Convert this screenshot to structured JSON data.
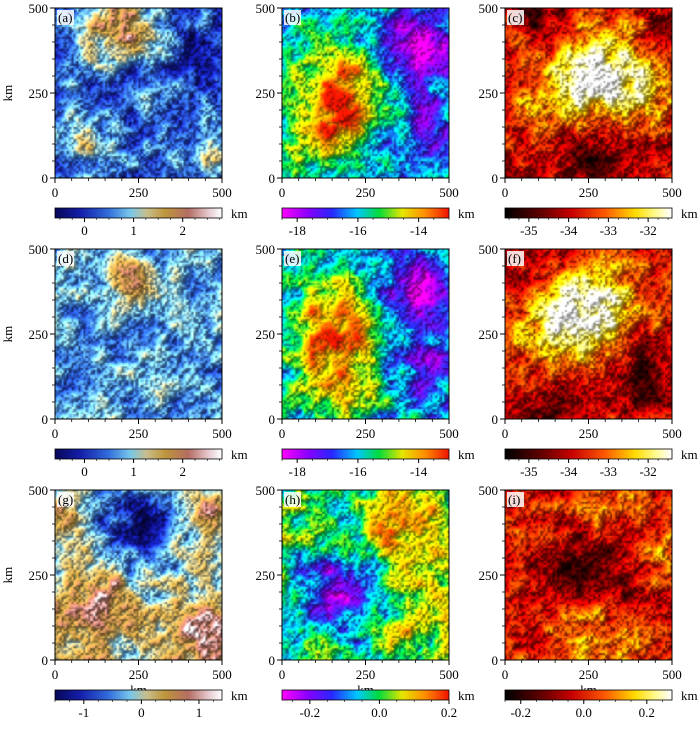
{
  "chart_data": [
    {
      "type": "heatmap",
      "label": "(a)",
      "axes": {
        "xlim": [
          0,
          500
        ],
        "ylim": [
          0,
          500
        ],
        "xticks": [
          "0",
          "250",
          "500"
        ],
        "yticks": [
          "0",
          "250",
          "500"
        ],
        "ylabel": "km",
        "xlabel": ""
      },
      "colorbar": {
        "unit": "km",
        "ticks": [
          "0",
          "1",
          "2"
        ],
        "tick_values": [
          0,
          1,
          2
        ],
        "range": [
          -0.6,
          2.8
        ],
        "colormap": "relief"
      },
      "pattern": {
        "min": -0.5,
        "max": 2.7,
        "blobs": [
          {
            "x": 180,
            "y": 440,
            "r": 120,
            "a": 1.6
          },
          {
            "x": 100,
            "y": 90,
            "r": 85,
            "a": 0.7
          },
          {
            "x": 470,
            "y": 80,
            "r": 60,
            "a": 0.8
          },
          {
            "x": 320,
            "y": 260,
            "r": 70,
            "a": 0.5
          },
          {
            "x": 250,
            "y": 320,
            "r": 60,
            "a": -0.5
          },
          {
            "x": 420,
            "y": 350,
            "r": 90,
            "a": -0.6
          }
        ],
        "base": 0.35,
        "seed": 11
      }
    },
    {
      "type": "heatmap",
      "label": "(b)",
      "axes": {
        "xlim": [
          0,
          500
        ],
        "ylim": [
          0,
          500
        ],
        "xticks": [
          "0",
          "250",
          "500"
        ],
        "yticks": [
          "0",
          "250",
          "500"
        ],
        "ylabel": "",
        "xlabel": ""
      },
      "colorbar": {
        "unit": "km",
        "ticks": [
          "-18",
          "-16",
          "-14"
        ],
        "tick_values": [
          -18,
          -16,
          -14
        ],
        "range": [
          -18.5,
          -13
        ],
        "colormap": "rainbow"
      },
      "pattern": {
        "min": -18.2,
        "max": -13.3,
        "blobs": [
          {
            "x": 180,
            "y": 250,
            "r": 130,
            "a": 2.6
          },
          {
            "x": 120,
            "y": 120,
            "r": 110,
            "a": 1.4
          },
          {
            "x": 400,
            "y": 380,
            "r": 110,
            "a": -2.2
          },
          {
            "x": 430,
            "y": 150,
            "r": 90,
            "a": -1.4
          }
        ],
        "base": -16.0,
        "seed": 21
      }
    },
    {
      "type": "heatmap",
      "label": "(c)",
      "axes": {
        "xlim": [
          0,
          500
        ],
        "ylim": [
          0,
          500
        ],
        "xticks": [
          "0",
          "250",
          "500"
        ],
        "yticks": [
          "0",
          "250",
          "500"
        ],
        "ylabel": "",
        "xlabel": ""
      },
      "colorbar": {
        "unit": "km",
        "ticks": [
          "-35",
          "-34",
          "-33",
          "-32"
        ],
        "tick_values": [
          -35,
          -34,
          -33,
          -32
        ],
        "range": [
          -35.6,
          -31.4
        ],
        "colormap": "hot"
      },
      "pattern": {
        "min": -35.5,
        "max": -31.5,
        "blobs": [
          {
            "x": 330,
            "y": 300,
            "r": 150,
            "a": 2.0
          },
          {
            "x": 180,
            "y": 250,
            "r": 140,
            "a": 1.2
          },
          {
            "x": 250,
            "y": 60,
            "r": 130,
            "a": -1.2
          },
          {
            "x": 120,
            "y": 460,
            "r": 80,
            "a": -1.0
          },
          {
            "x": 470,
            "y": 460,
            "r": 70,
            "a": -1.0
          }
        ],
        "base": -33.8,
        "seed": 31
      }
    },
    {
      "type": "heatmap",
      "label": "(d)",
      "axes": {
        "xlim": [
          0,
          500
        ],
        "ylim": [
          0,
          500
        ],
        "xticks": [
          "0",
          "250",
          "500"
        ],
        "yticks": [
          "0",
          "250",
          "500"
        ],
        "ylabel": "km",
        "xlabel": ""
      },
      "colorbar": {
        "unit": "km",
        "ticks": [
          "0",
          "1",
          "2"
        ],
        "tick_values": [
          0,
          1,
          2
        ],
        "range": [
          -0.6,
          2.8
        ],
        "colormap": "relief"
      },
      "pattern": {
        "min": -0.3,
        "max": 2.3,
        "blobs": [
          {
            "x": 230,
            "y": 410,
            "r": 75,
            "a": 1.2
          },
          {
            "x": 290,
            "y": 50,
            "r": 40,
            "a": 0.4
          }
        ],
        "base": 0.7,
        "seed": 41
      }
    },
    {
      "type": "heatmap",
      "label": "(e)",
      "axes": {
        "xlim": [
          0,
          500
        ],
        "ylim": [
          0,
          500
        ],
        "xticks": [
          "0",
          "250",
          "500"
        ],
        "yticks": [
          "0",
          "250",
          "500"
        ],
        "ylabel": "",
        "xlabel": ""
      },
      "colorbar": {
        "unit": "km",
        "ticks": [
          "-18",
          "-16",
          "-14"
        ],
        "tick_values": [
          -18,
          -16,
          -14
        ],
        "range": [
          -18.5,
          -13
        ],
        "colormap": "rainbow"
      },
      "pattern": {
        "min": -18.2,
        "max": -13.3,
        "blobs": [
          {
            "x": 170,
            "y": 280,
            "r": 130,
            "a": 2.6
          },
          {
            "x": 160,
            "y": 110,
            "r": 110,
            "a": 1.6
          },
          {
            "x": 400,
            "y": 380,
            "r": 110,
            "a": -2.2
          },
          {
            "x": 430,
            "y": 150,
            "r": 90,
            "a": -1.4
          }
        ],
        "base": -16.0,
        "seed": 51
      }
    },
    {
      "type": "heatmap",
      "label": "(f)",
      "axes": {
        "xlim": [
          0,
          500
        ],
        "ylim": [
          0,
          500
        ],
        "xticks": [
          "0",
          "250",
          "500"
        ],
        "yticks": [
          "0",
          "250",
          "500"
        ],
        "ylabel": "",
        "xlabel": ""
      },
      "colorbar": {
        "unit": "km",
        "ticks": [
          "-35",
          "-34",
          "-33",
          "-32"
        ],
        "tick_values": [
          -35,
          -34,
          -33,
          -32
        ],
        "range": [
          -35.6,
          -31.4
        ],
        "colormap": "hot"
      },
      "pattern": {
        "min": -35.5,
        "max": -31.5,
        "blobs": [
          {
            "x": 260,
            "y": 330,
            "r": 150,
            "a": 2.0
          },
          {
            "x": 150,
            "y": 240,
            "r": 130,
            "a": 1.2
          },
          {
            "x": 420,
            "y": 130,
            "r": 110,
            "a": -1.2
          },
          {
            "x": 150,
            "y": 60,
            "r": 110,
            "a": -1.0
          },
          {
            "x": 100,
            "y": 460,
            "r": 80,
            "a": -1.0
          }
        ],
        "base": -33.8,
        "seed": 61
      }
    },
    {
      "type": "heatmap",
      "label": "(g)",
      "axes": {
        "xlim": [
          0,
          500
        ],
        "ylim": [
          0,
          500
        ],
        "xticks": [
          "0",
          "250",
          "500"
        ],
        "yticks": [
          "0",
          "250",
          "500"
        ],
        "ylabel": "km",
        "xlabel": "km"
      },
      "colorbar": {
        "unit": "km",
        "ticks": [
          "-1",
          "0",
          "1"
        ],
        "tick_values": [
          -1,
          0,
          1
        ],
        "range": [
          -1.5,
          1.4
        ],
        "colormap": "relief"
      },
      "pattern": {
        "min": -1.3,
        "max": 1.3,
        "blobs": [
          {
            "x": 250,
            "y": 400,
            "r": 120,
            "a": -1.4
          },
          {
            "x": 130,
            "y": 170,
            "r": 120,
            "a": 0.8
          },
          {
            "x": 440,
            "y": 80,
            "r": 110,
            "a": 1.0
          },
          {
            "x": 470,
            "y": 420,
            "r": 70,
            "a": 0.8
          },
          {
            "x": 20,
            "y": 420,
            "r": 50,
            "a": 0.6
          }
        ],
        "base": 0.0,
        "seed": 71
      }
    },
    {
      "type": "heatmap",
      "label": "(h)",
      "axes": {
        "xlim": [
          0,
          500
        ],
        "ylim": [
          0,
          500
        ],
        "xticks": [
          "0",
          "250",
          "500"
        ],
        "yticks": [
          "0",
          "250",
          "500"
        ],
        "ylabel": "",
        "xlabel": "km"
      },
      "colorbar": {
        "unit": "km",
        "ticks": [
          "-0.2",
          "0.0",
          "0.2"
        ],
        "tick_values": [
          -0.2,
          0.0,
          0.2
        ],
        "range": [
          -0.28,
          0.2
        ],
        "colormap": "rainbow"
      },
      "pattern": {
        "min": -0.27,
        "max": 0.19,
        "blobs": [
          {
            "x": 170,
            "y": 200,
            "r": 120,
            "a": -0.22
          },
          {
            "x": 380,
            "y": 400,
            "r": 120,
            "a": 0.15
          },
          {
            "x": 420,
            "y": 130,
            "r": 100,
            "a": 0.1
          }
        ],
        "base": 0.0,
        "seed": 81
      }
    },
    {
      "type": "heatmap",
      "label": "(i)",
      "axes": {
        "xlim": [
          0,
          500
        ],
        "ylim": [
          0,
          500
        ],
        "xticks": [
          "0",
          "250",
          "500"
        ],
        "yticks": [
          "0",
          "250",
          "500"
        ],
        "ylabel": "",
        "xlabel": "km"
      },
      "colorbar": {
        "unit": "km",
        "ticks": [
          "-0.2",
          "0.0",
          "0.2"
        ],
        "tick_values": [
          -0.2,
          0.0,
          0.2
        ],
        "range": [
          -0.25,
          0.28
        ],
        "colormap": "hot"
      },
      "pattern": {
        "min": -0.24,
        "max": 0.27,
        "blobs": [
          {
            "x": 250,
            "y": 270,
            "r": 150,
            "a": -0.18
          },
          {
            "x": 300,
            "y": 420,
            "r": 120,
            "a": 0.12
          },
          {
            "x": 250,
            "y": 80,
            "r": 120,
            "a": 0.15
          },
          {
            "x": 460,
            "y": 300,
            "r": 60,
            "a": 0.1
          }
        ],
        "base": 0.0,
        "seed": 91
      }
    }
  ]
}
